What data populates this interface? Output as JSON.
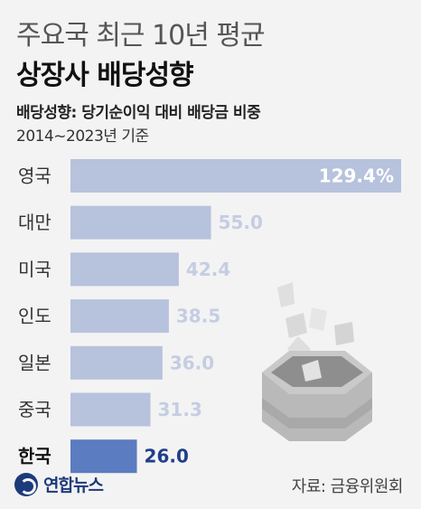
{
  "header": {
    "title_line1": "주요국 최근 10년 평균",
    "title_line2": "상장사 배당성향",
    "subtitle1": "배당성향: 당기순이익 대비 배당금 비중",
    "subtitle2": "2014~2023년 기준"
  },
  "chart_data": {
    "type": "bar",
    "orientation": "horizontal",
    "categories": [
      "영국",
      "대만",
      "미국",
      "인도",
      "일본",
      "중국",
      "한국"
    ],
    "values": [
      129.4,
      55.0,
      42.4,
      38.5,
      36.0,
      31.3,
      26.0
    ],
    "value_labels": [
      "129.4%",
      "55.0",
      "42.4",
      "38.5",
      "36.0",
      "31.3",
      "26.0"
    ],
    "highlight": "한국",
    "colors": {
      "bar": "#b7c2dd",
      "highlight_bar": "#5b7cc0"
    }
  },
  "footer": {
    "logo_text": "연합뉴스",
    "source": "자료: 금융위원회"
  }
}
